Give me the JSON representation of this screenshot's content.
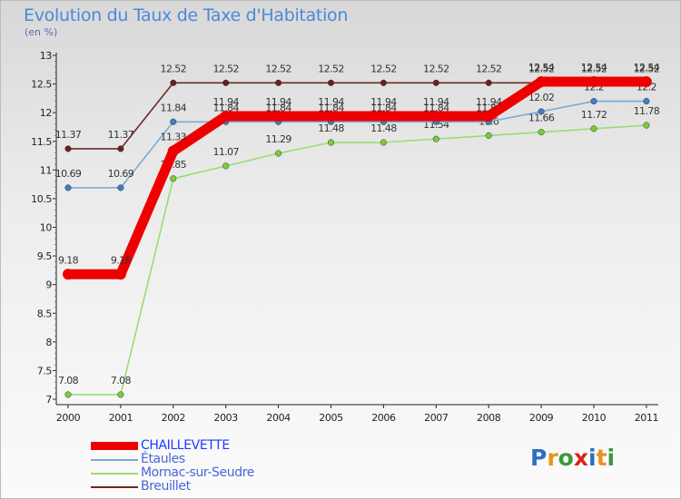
{
  "title": "Evolution du Taux de Taxe d'Habitation",
  "unit_label": "(en %)",
  "logo": {
    "letters": [
      "P",
      "r",
      "o",
      "x",
      "i",
      "t",
      "i"
    ],
    "colors": [
      "#2b6fc4",
      "#e8941c",
      "#3a9a3a",
      "#d8241a",
      "#2b6fc4",
      "#e8941c",
      "#3a9a3a"
    ]
  },
  "chart_data": {
    "type": "line",
    "title": "Evolution du Taux de Taxe d'Habitation",
    "ylabel": "(en %)",
    "xlabel": "",
    "ylim": [
      7,
      13
    ],
    "yticks": [
      "7",
      "7.5",
      "8",
      "8.5",
      "9",
      "9.5",
      "10",
      "10.5",
      "11",
      "11.5",
      "12",
      "12.5",
      "13"
    ],
    "categories": [
      "2000",
      "2001",
      "2002",
      "2003",
      "2004",
      "2005",
      "2006",
      "2007",
      "2008",
      "2009",
      "2010",
      "2011"
    ],
    "grid": false,
    "legend_position": "bottom-left",
    "series": [
      {
        "name": "Breuillet",
        "color": "#6b2a2a",
        "point_color": "#6b2020",
        "values": [
          11.37,
          11.37,
          12.52,
          12.52,
          12.52,
          12.52,
          12.52,
          12.52,
          12.52,
          12.52,
          12.52,
          12.52
        ],
        "labels": [
          "11.37",
          "11.37",
          "12.52",
          "12.52",
          "12.52",
          "12.52",
          "12.52",
          "12.52",
          "12.52",
          "12.52",
          "12.52",
          "12.52"
        ]
      },
      {
        "name": "Mornac-sur-Seudre",
        "color": "#99dd77",
        "point_color": "#7ecb3a",
        "values": [
          7.08,
          7.08,
          10.85,
          11.07,
          11.29,
          11.48,
          11.48,
          11.54,
          11.6,
          11.66,
          11.72,
          11.78
        ],
        "labels": [
          "7.08",
          "7.08",
          "10.85",
          "11.07",
          "11.29",
          "11.48",
          "11.48",
          "11.54",
          "11.6",
          "11.66",
          "11.72",
          "11.78"
        ]
      },
      {
        "name": "Étaules",
        "color": "#7aaad6",
        "point_color": "#3a7fc8",
        "values": [
          10.69,
          10.69,
          11.84,
          11.84,
          11.84,
          11.84,
          11.84,
          11.84,
          11.84,
          12.02,
          12.2,
          12.2
        ],
        "labels": [
          "10.69",
          "10.69",
          "11.84",
          "11.84",
          "11.84",
          "11.84",
          "11.84",
          "11.84",
          "11.84",
          "12.02",
          "12.2",
          "12.2"
        ]
      },
      {
        "name": "CHAILLEVETTE",
        "color": "#ee0000",
        "point_color": "#ee0000",
        "values": [
          9.18,
          9.18,
          11.33,
          11.94,
          11.94,
          11.94,
          11.94,
          11.94,
          11.94,
          12.54,
          12.54,
          12.54
        ],
        "labels": [
          "9.18",
          "9.18",
          "11.33",
          "11.94",
          "11.94",
          "11.94",
          "11.94",
          "11.94",
          "11.94",
          "12.54",
          "12.54",
          "12.54"
        ]
      }
    ],
    "legend": [
      {
        "name": "CHAILLEVETTE",
        "color": "#ee0000",
        "text_color": "#1a3cff"
      },
      {
        "name": "Étaules",
        "color": "#7aaad6",
        "text_color": "#4a66d8"
      },
      {
        "name": "Mornac-sur-Seudre",
        "color": "#99dd77",
        "text_color": "#4a66d8"
      },
      {
        "name": "Breuillet",
        "color": "#6b2a2a",
        "text_color": "#4a66d8"
      }
    ]
  }
}
